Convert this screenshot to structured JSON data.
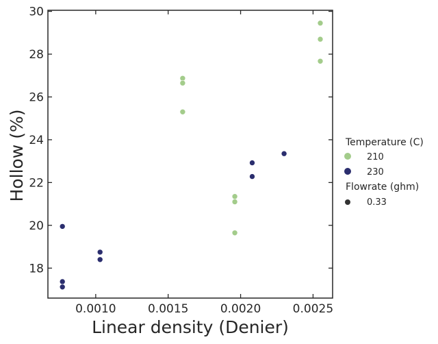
{
  "chart_data": {
    "type": "scatter",
    "title": "",
    "xlabel": "Linear density (Denier)",
    "ylabel": "Hollow (%)",
    "xlim": [
      0.00067,
      0.002635
    ],
    "ylim": [
      16.6,
      30.05
    ],
    "xticks": [
      0.001,
      0.0015,
      0.002,
      0.0025
    ],
    "xtick_labels": [
      "0.0010",
      "0.0015",
      "0.0020",
      "0.0025"
    ],
    "yticks": [
      18,
      20,
      22,
      24,
      26,
      28,
      30
    ],
    "ytick_labels": [
      "18",
      "20",
      "22",
      "24",
      "26",
      "28",
      "30"
    ],
    "grid": false,
    "legend_placement": "right",
    "series": [
      {
        "name": "210",
        "color": "#a3cc8b",
        "points": [
          {
            "x": 0.0016,
            "y": 26.87
          },
          {
            "x": 0.0016,
            "y": 26.65
          },
          {
            "x": 0.0016,
            "y": 25.3
          },
          {
            "x": 0.00196,
            "y": 21.35
          },
          {
            "x": 0.00196,
            "y": 21.1
          },
          {
            "x": 0.00196,
            "y": 19.65
          },
          {
            "x": 0.00255,
            "y": 29.45
          },
          {
            "x": 0.00255,
            "y": 28.7
          },
          {
            "x": 0.00255,
            "y": 27.67
          }
        ]
      },
      {
        "name": "230",
        "color": "#2b2e6e",
        "points": [
          {
            "x": 0.00077,
            "y": 19.95
          },
          {
            "x": 0.00077,
            "y": 17.37
          },
          {
            "x": 0.00077,
            "y": 17.12
          },
          {
            "x": 0.00103,
            "y": 18.75
          },
          {
            "x": 0.00103,
            "y": 18.4
          },
          {
            "x": 0.00208,
            "y": 22.92
          },
          {
            "x": 0.00208,
            "y": 22.28
          },
          {
            "x": 0.0023,
            "y": 23.35
          }
        ]
      }
    ],
    "legend": {
      "hue_title": "Temperature (C)",
      "hue_entries": [
        {
          "label": "210",
          "color": "#a3cc8b"
        },
        {
          "label": "230",
          "color": "#2b2e6e"
        }
      ],
      "size_title": "Flowrate (ghm)",
      "size_entries": [
        {
          "label": "0.33",
          "color": "#333333"
        }
      ]
    }
  }
}
